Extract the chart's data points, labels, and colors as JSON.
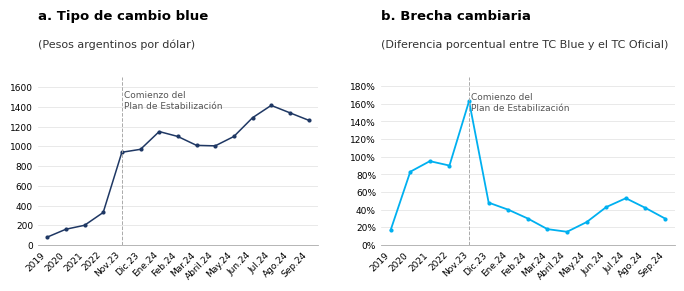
{
  "title_a": "a. Tipo de cambio blue",
  "subtitle_a": "(Pesos argentinos por dólar)",
  "title_b": "b. Brecha cambiaria",
  "subtitle_b": "(Diferencia porcentual entre TC Blue y el TC Oficial)",
  "annotation": "Comienzo del\nPlan de Estabilización",
  "labels_a": [
    "2019",
    "2020",
    "2021",
    "2022",
    "Nov.23",
    "Dic.23",
    "Ene.24",
    "Feb.24",
    "Mar.24",
    "Abril.24",
    "May.24",
    "Jun.24",
    "Jul.24",
    "Ago.24",
    "Sep.24"
  ],
  "values_a": [
    80,
    160,
    200,
    330,
    940,
    970,
    1150,
    1100,
    1010,
    1005,
    1100,
    1290,
    1415,
    1340,
    1265
  ],
  "labels_b": [
    "2019",
    "2020",
    "2021",
    "2022",
    "Nov.23",
    "Dic.23",
    "Ene.24",
    "Feb.24",
    "Mar.24",
    "Abril.24",
    "May.24",
    "Jun.24",
    "Jul.24",
    "Ago.24",
    "Sep.24"
  ],
  "values_b": [
    0.17,
    0.83,
    0.95,
    0.9,
    1.63,
    0.48,
    0.4,
    0.3,
    0.18,
    0.15,
    0.26,
    0.43,
    0.53,
    0.42,
    0.3
  ],
  "color_a": "#1f3864",
  "color_b": "#00b0f0",
  "vline_index": 4,
  "ylim_a": [
    0,
    1700
  ],
  "yticks_a": [
    0,
    200,
    400,
    600,
    800,
    1000,
    1200,
    1400,
    1600
  ],
  "ylim_b": [
    0,
    1.9
  ],
  "yticks_b": [
    0.0,
    0.2,
    0.4,
    0.6,
    0.8,
    1.0,
    1.2,
    1.4,
    1.6,
    1.8
  ],
  "bg_color": "#ffffff",
  "title_fontsize": 9.5,
  "subtitle_fontsize": 8,
  "tick_fontsize": 6.5,
  "annot_fontsize": 6.5
}
